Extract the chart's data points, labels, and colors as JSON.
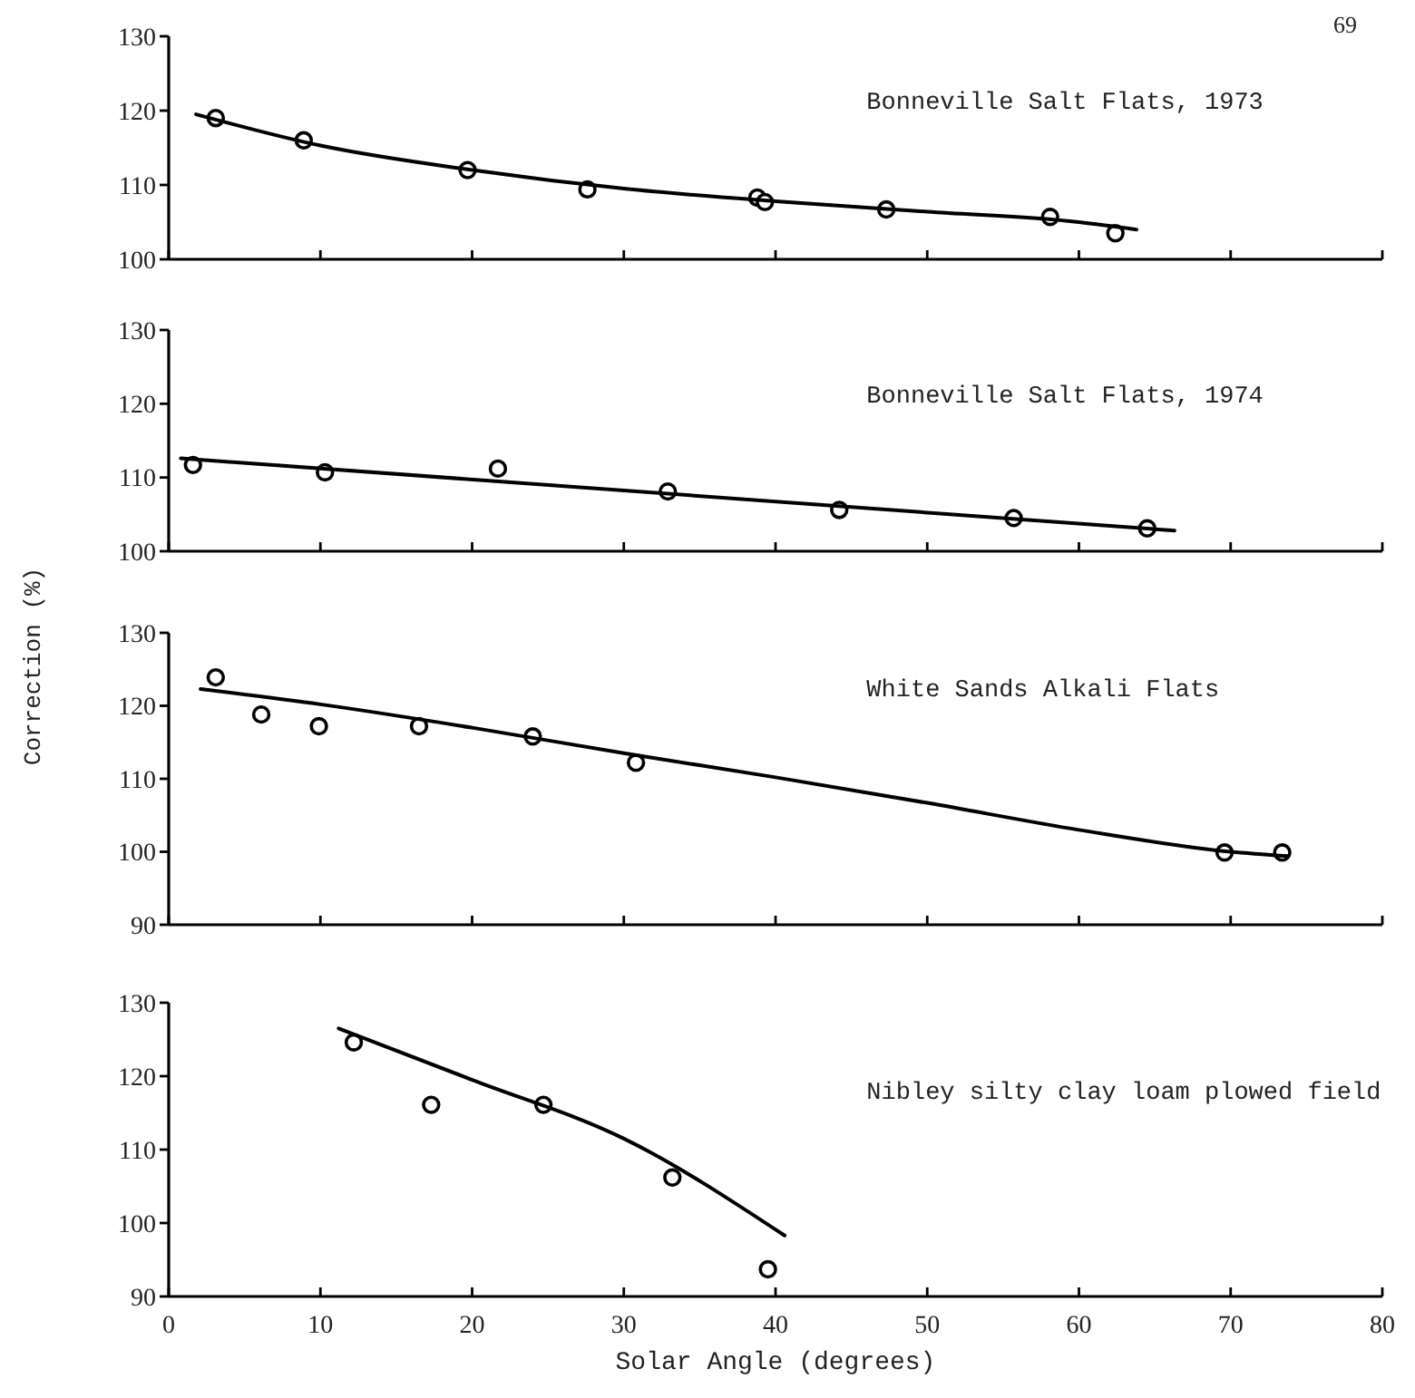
{
  "chart_data": [
    {
      "type": "scatter",
      "title": "Bonneville Salt Flats, 1973",
      "annotations": [
        "69"
      ],
      "xlim": [
        0,
        80
      ],
      "xticks": [
        0,
        10,
        20,
        30,
        40,
        50,
        60,
        70,
        80
      ],
      "ylim": [
        100,
        130
      ],
      "yticks": [
        100,
        110,
        120,
        130
      ],
      "tick_labels": "y",
      "grid": false,
      "series": [
        {
          "color": "#000000",
          "marker": "circle",
          "x": [
            3.1,
            8.9,
            19.7,
            27.6,
            38.8,
            39.3,
            47.3,
            58.1,
            62.4
          ],
          "values": [
            119.0,
            116.0,
            112.0,
            109.4,
            108.3,
            107.7,
            106.7,
            105.7,
            103.5
          ]
        },
        {
          "type": "line",
          "color": "#000000",
          "marker": "none",
          "line_style": "solid",
          "x": [
            1.8,
            10,
            20,
            30,
            40,
            50,
            60,
            63.8
          ],
          "values": [
            119.5,
            115.3,
            112.0,
            109.5,
            107.8,
            106.4,
            105.0,
            104.0
          ]
        }
      ]
    },
    {
      "type": "scatter",
      "title": "Bonneville Salt Flats, 1974",
      "ylabel": "Correction (%)",
      "xlim": [
        0,
        80
      ],
      "xticks": [
        0,
        10,
        20,
        30,
        40,
        50,
        60,
        70,
        80
      ],
      "ylim": [
        100,
        130
      ],
      "yticks": [
        100,
        110,
        120,
        130
      ],
      "tick_labels": "y",
      "grid": false,
      "series": [
        {
          "color": "#000000",
          "marker": "circle",
          "x": [
            1.6,
            10.3,
            21.7,
            32.9,
            44.2,
            55.7,
            64.5
          ],
          "values": [
            111.7,
            110.7,
            111.2,
            108.1,
            105.6,
            104.5,
            103.1
          ]
        },
        {
          "type": "line",
          "color": "#000000",
          "marker": "none",
          "line_style": "solid",
          "x": [
            0.8,
            66.3
          ],
          "values": [
            112.6,
            102.8
          ]
        }
      ]
    },
    {
      "type": "scatter",
      "title": "White Sands Alkali Flats",
      "xlim": [
        0,
        80
      ],
      "xticks": [
        0,
        10,
        20,
        30,
        40,
        50,
        60,
        70,
        80
      ],
      "ylim": [
        90,
        130
      ],
      "yticks": [
        90,
        100,
        110,
        120,
        130
      ],
      "tick_labels": "y",
      "grid": false,
      "series": [
        {
          "color": "#000000",
          "marker": "circle",
          "x": [
            3.1,
            6.1,
            9.9,
            16.5,
            24.0,
            30.8,
            69.6,
            73.4
          ],
          "values": [
            123.9,
            118.8,
            117.2,
            117.2,
            115.8,
            112.2,
            99.9,
            99.9
          ]
        },
        {
          "type": "line",
          "color": "#000000",
          "marker": "none",
          "line_style": "solid",
          "x": [
            2.1,
            10,
            20,
            30,
            40,
            50,
            60,
            70,
            73.8
          ],
          "values": [
            122.3,
            120.2,
            117.0,
            113.5,
            110.2,
            106.7,
            103.0,
            100.0,
            99.4
          ]
        }
      ]
    },
    {
      "type": "scatter",
      "title": "Nibley silty clay loam plowed field",
      "xlabel": "Solar Angle (degrees)",
      "xlim": [
        0,
        80
      ],
      "xticks": [
        0,
        10,
        20,
        30,
        40,
        50,
        60,
        70,
        80
      ],
      "ylim": [
        90,
        130
      ],
      "yticks": [
        90,
        100,
        110,
        120,
        130
      ],
      "grid": false,
      "series": [
        {
          "color": "#000000",
          "marker": "circle",
          "x": [
            12.2,
            17.3,
            24.7,
            33.2,
            39.5
          ],
          "values": [
            124.6,
            116.1,
            116.1,
            106.2,
            93.7
          ]
        },
        {
          "type": "line",
          "color": "#000000",
          "marker": "none",
          "line_style": "solid",
          "x": [
            11.2,
            20,
            30,
            40.6
          ],
          "values": [
            126.5,
            119.5,
            111.5,
            98.3
          ]
        }
      ]
    }
  ]
}
